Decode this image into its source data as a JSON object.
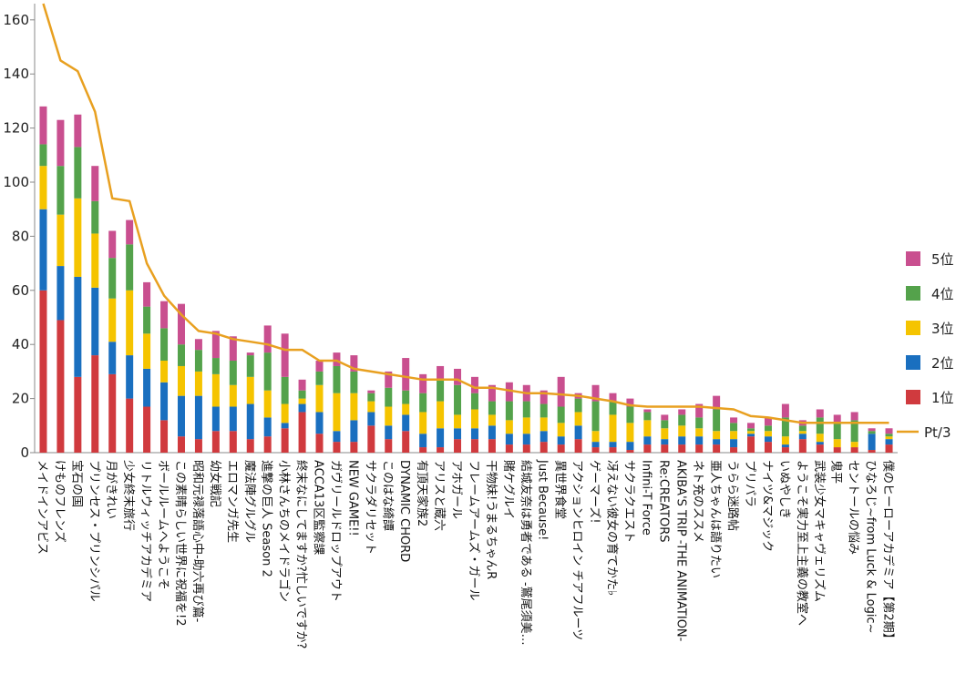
{
  "chart_data": {
    "type": "bar",
    "stacked": true,
    "title": "",
    "xlabel": "",
    "ylabel": "",
    "ylim": [
      0,
      166
    ],
    "yticks": [
      0,
      20,
      40,
      60,
      80,
      100,
      120,
      140,
      160
    ],
    "categories": [
      "メイドインアビス",
      "けものフレンズ",
      "宝石の国",
      "プリンセス・プリンシパル",
      "月がきれい",
      "少女終末旅行",
      "リトルウィッチアカデミア",
      "ボールルームへようこそ",
      "この素晴らしい世界に祝福を!2",
      "昭和元禄落語心中-助六再び篇-",
      "幼女戦記",
      "エロマンガ先生",
      "魔法陣グルグル",
      "進撃の巨人 Season 2",
      "小林さんちのメイドラゴン",
      "終末なにしてますか?忙しいですか?",
      "ACCA13区監察課",
      "ガヴリールドロップアウト",
      "NEW GAME!!",
      "サクラダリセット",
      "このはな綺譚",
      "DYNAMIC CHORD",
      "有頂天家族2",
      "アリスと蔵六",
      "アホガール",
      "フレームアームズ・ガール",
      "干物妹!うまるちゃんR",
      "賭ケグルイ",
      "結城友奈は勇者である -鷲尾須美…",
      "Just Because!",
      "異世界食堂",
      "アクションヒロイン チアフルーツ",
      "ゲーマーズ!",
      "冴えない彼女の育てかた♭",
      "サクラクエスト",
      "Infini-T Force",
      "Re:CREATORS",
      "AKIBA'S TRIP -THE ANIMATION-",
      "ネト充のススメ",
      "亜人ちゃんは語りたい",
      "うらら迷路帖",
      "プリパラ",
      "ナイツ&マジック",
      "いぬやしき",
      "ようこそ実力至上主義の教室へ",
      "武装少女マキャヴェリズム",
      "鬼平",
      "セントールの悩み",
      "ひなろじ~from Luck & Logic~",
      "僕のヒーローアカデミア【第2期】"
    ],
    "series": [
      {
        "name": "1位",
        "color": "#d03a3e",
        "values": [
          60,
          49,
          28,
          36,
          29,
          20,
          17,
          12,
          6,
          5,
          8,
          8,
          5,
          6,
          9,
          15,
          7,
          4,
          4,
          10,
          5,
          8,
          2,
          2,
          5,
          5,
          5,
          3,
          3,
          4,
          3,
          5,
          2,
          2,
          1,
          3,
          3,
          3,
          3,
          3,
          2,
          6,
          4,
          2,
          5,
          3,
          2,
          2,
          1,
          3
        ]
      },
      {
        "name": "2位",
        "color": "#1a6fbf",
        "values": [
          30,
          20,
          37,
          25,
          12,
          16,
          14,
          14,
          15,
          16,
          9,
          9,
          13,
          7,
          2,
          3,
          8,
          4,
          8,
          5,
          5,
          6,
          5,
          7,
          4,
          4,
          5,
          4,
          4,
          4,
          3,
          5,
          2,
          2,
          3,
          3,
          2,
          3,
          3,
          2,
          3,
          1,
          2,
          1,
          2,
          1,
          0,
          0,
          6,
          2
        ]
      },
      {
        "name": "3位",
        "color": "#f5c400",
        "values": [
          16,
          19,
          29,
          20,
          16,
          24,
          13,
          8,
          11,
          9,
          12,
          8,
          10,
          10,
          7,
          2,
          10,
          14,
          10,
          4,
          7,
          4,
          8,
          10,
          5,
          7,
          4,
          5,
          6,
          5,
          5,
          5,
          4,
          10,
          7,
          6,
          4,
          4,
          3,
          3,
          3,
          1,
          2,
          3,
          1,
          3,
          3,
          2,
          0,
          1
        ]
      },
      {
        "name": "4位",
        "color": "#54a24b",
        "values": [
          8,
          18,
          19,
          12,
          15,
          17,
          10,
          12,
          8,
          8,
          6,
          9,
          8,
          14,
          10,
          3,
          5,
          10,
          8,
          3,
          7,
          5,
          7,
          8,
          11,
          6,
          5,
          7,
          6,
          5,
          6,
          5,
          11,
          5,
          6,
          3,
          3,
          4,
          4,
          8,
          3,
          1,
          2,
          7,
          2,
          6,
          6,
          8,
          1,
          1
        ]
      },
      {
        "name": "5位",
        "color": "#c94f8f",
        "values": [
          14,
          17,
          12,
          13,
          10,
          9,
          9,
          10,
          15,
          4,
          10,
          9,
          1,
          10,
          16,
          4,
          4,
          5,
          6,
          1,
          6,
          12,
          7,
          5,
          6,
          6,
          6,
          7,
          6,
          5,
          11,
          2,
          6,
          3,
          3,
          1,
          2,
          2,
          5,
          5,
          2,
          2,
          3,
          5,
          2,
          3,
          3,
          3,
          1,
          2
        ]
      }
    ],
    "line": {
      "name": "Pt/3",
      "color": "#e8a020",
      "values": [
        166,
        145,
        141,
        126,
        94,
        93,
        70,
        58,
        51,
        45,
        44,
        42,
        41,
        40,
        38,
        38,
        34,
        34,
        31,
        30,
        29,
        28,
        27,
        27,
        27,
        24,
        24,
        23,
        22,
        22,
        21.5,
        21,
        20,
        19,
        17.5,
        17,
        17,
        17,
        17,
        16.5,
        16,
        13.5,
        13,
        12,
        11,
        11,
        11,
        11,
        11,
        11
      ]
    },
    "legend": {
      "position": "right",
      "entries": [
        "5位",
        "4位",
        "3位",
        "2位",
        "1位",
        "Pt/3"
      ]
    }
  }
}
